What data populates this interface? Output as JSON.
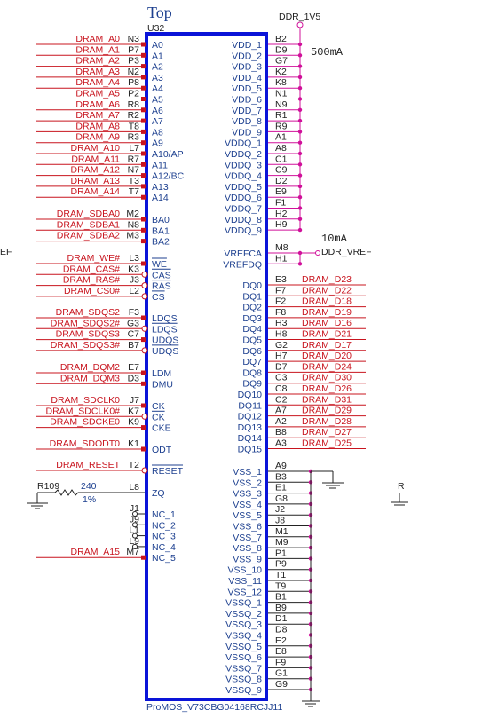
{
  "header": {
    "title": "Top",
    "refdes": "U32",
    "part": "ProMOS_V73CBG04168RCJJ11"
  },
  "power": {
    "rail": "DDR_1V5",
    "rail_current": "500mA",
    "vref": "DDR_VREF",
    "vref_current": "10mA"
  },
  "resistor": {
    "ref": "R109",
    "value": "240",
    "tolerance": "1%"
  },
  "edge_fragments": {
    "left": "EF",
    "right": "R"
  },
  "left_pins": [
    {
      "pin": "N3",
      "name": "A0",
      "net": "DRAM_A0"
    },
    {
      "pin": "P7",
      "name": "A1",
      "net": "DRAM_A1"
    },
    {
      "pin": "P3",
      "name": "A2",
      "net": "DRAM_A2"
    },
    {
      "pin": "N2",
      "name": "A3",
      "net": "DRAM_A3"
    },
    {
      "pin": "P8",
      "name": "A4",
      "net": "DRAM_A4"
    },
    {
      "pin": "P2",
      "name": "A5",
      "net": "DRAM_A5"
    },
    {
      "pin": "R8",
      "name": "A6",
      "net": "DRAM_A6"
    },
    {
      "pin": "R2",
      "name": "A7",
      "net": "DRAM_A7"
    },
    {
      "pin": "T8",
      "name": "A8",
      "net": "DRAM_A8"
    },
    {
      "pin": "R3",
      "name": "A9",
      "net": "DRAM_A9"
    },
    {
      "pin": "L7",
      "name": "A10/AP",
      "net": "DRAM_A10"
    },
    {
      "pin": "R7",
      "name": "A11",
      "net": "DRAM_A11"
    },
    {
      "pin": "N7",
      "name": "A12/BC",
      "net": "DRAM_A12"
    },
    {
      "pin": "T3",
      "name": "A13",
      "net": "DRAM_A13"
    },
    {
      "pin": "T7",
      "name": "A14",
      "net": "DRAM_A14"
    },
    {
      "pin": "M2",
      "name": "BA0",
      "net": "DRAM_SDBA0"
    },
    {
      "pin": "N8",
      "name": "BA1",
      "net": "DRAM_SDBA1"
    },
    {
      "pin": "M3",
      "name": "BA2",
      "net": "DRAM_SDBA2"
    },
    {
      "pin": "L3",
      "name": "WE",
      "net": "DRAM_WE#"
    },
    {
      "pin": "K3",
      "name": "CAS",
      "net": "DRAM_CAS#"
    },
    {
      "pin": "J3",
      "name": "RAS",
      "net": "DRAM_RAS#"
    },
    {
      "pin": "L2",
      "name": "CS",
      "net": "DRAM_CS0#"
    },
    {
      "pin": "F3",
      "name": "LDQS",
      "net": "DRAM_SDQS2"
    },
    {
      "pin": "G3",
      "name": "LDQS",
      "net": "DRAM_SDQS2#"
    },
    {
      "pin": "C7",
      "name": "UDQS",
      "net": "DRAM_SDQS3"
    },
    {
      "pin": "B7",
      "name": "UDQS",
      "net": "DRAM_SDQS3#"
    },
    {
      "pin": "E7",
      "name": "LDM",
      "net": "DRAM_DQM2"
    },
    {
      "pin": "D3",
      "name": "DMU",
      "net": "DRAM_DQM3"
    },
    {
      "pin": "J7",
      "name": "CK",
      "net": "DRAM_SDCLK0"
    },
    {
      "pin": "K7",
      "name": "CK",
      "net": "DRAM_SDCLK0#"
    },
    {
      "pin": "K9",
      "name": "CKE",
      "net": "DRAM_SDCKE0"
    },
    {
      "pin": "K1",
      "name": "ODT",
      "net": "DRAM_SDODT0"
    },
    {
      "pin": "T2",
      "name": "RESET",
      "net": "DRAM_RESET"
    },
    {
      "pin": "L8",
      "name": "ZQ"
    },
    {
      "pin": "J1",
      "name": "NC_1"
    },
    {
      "pin": "J9",
      "name": "NC_2"
    },
    {
      "pin": "L1",
      "name": "NC_3"
    },
    {
      "pin": "L9",
      "name": "NC_4"
    },
    {
      "pin": "M7",
      "name": "NC_5",
      "net": "DRAM_A15"
    }
  ],
  "right_pins": [
    {
      "pin": "B2",
      "name": "VDD_1"
    },
    {
      "pin": "D9",
      "name": "VDD_2"
    },
    {
      "pin": "G7",
      "name": "VDD_3"
    },
    {
      "pin": "K2",
      "name": "VDD_4"
    },
    {
      "pin": "K8",
      "name": "VDD_5"
    },
    {
      "pin": "N1",
      "name": "VDD_6"
    },
    {
      "pin": "N9",
      "name": "VDD_7"
    },
    {
      "pin": "R1",
      "name": "VDD_8"
    },
    {
      "pin": "R9",
      "name": "VDD_9"
    },
    {
      "pin": "A1",
      "name": "VDDQ_1"
    },
    {
      "pin": "A8",
      "name": "VDDQ_2"
    },
    {
      "pin": "C1",
      "name": "VDDQ_3"
    },
    {
      "pin": "C9",
      "name": "VDDQ_4"
    },
    {
      "pin": "D2",
      "name": "VDDQ_5"
    },
    {
      "pin": "E9",
      "name": "VDDQ_6"
    },
    {
      "pin": "F1",
      "name": "VDDQ_7"
    },
    {
      "pin": "H2",
      "name": "VDDQ_8"
    },
    {
      "pin": "H9",
      "name": "VDDQ_9"
    },
    {
      "pin": "M8",
      "name": "VREFCA"
    },
    {
      "pin": "H1",
      "name": "VREFDQ"
    },
    {
      "pin": "E3",
      "name": "DQ0",
      "net": "DRAM_D23"
    },
    {
      "pin": "F7",
      "name": "DQ1",
      "net": "DRAM_D22"
    },
    {
      "pin": "F2",
      "name": "DQ2",
      "net": "DRAM_D18"
    },
    {
      "pin": "F8",
      "name": "DQ3",
      "net": "DRAM_D19"
    },
    {
      "pin": "H3",
      "name": "DQ4",
      "net": "DRAM_D16"
    },
    {
      "pin": "H8",
      "name": "DQ5",
      "net": "DRAM_D21"
    },
    {
      "pin": "G2",
      "name": "DQ6",
      "net": "DRAM_D17"
    },
    {
      "pin": "H7",
      "name": "DQ7",
      "net": "DRAM_D20"
    },
    {
      "pin": "D7",
      "name": "DQ8",
      "net": "DRAM_D24"
    },
    {
      "pin": "C3",
      "name": "DQ9",
      "net": "DRAM_D30"
    },
    {
      "pin": "C8",
      "name": "DQ10",
      "net": "DRAM_D26"
    },
    {
      "pin": "C2",
      "name": "DQ11",
      "net": "DRAM_D31"
    },
    {
      "pin": "A7",
      "name": "DQ12",
      "net": "DRAM_D29"
    },
    {
      "pin": "A2",
      "name": "DQ13",
      "net": "DRAM_D28"
    },
    {
      "pin": "B8",
      "name": "DQ14",
      "net": "DRAM_D27"
    },
    {
      "pin": "A3",
      "name": "DQ15",
      "net": "DRAM_D25"
    },
    {
      "pin": "A9",
      "name": "VSS_1"
    },
    {
      "pin": "B3",
      "name": "VSS_2"
    },
    {
      "pin": "E1",
      "name": "VSS_3"
    },
    {
      "pin": "G8",
      "name": "VSS_4"
    },
    {
      "pin": "J2",
      "name": "VSS_5"
    },
    {
      "pin": "J8",
      "name": "VSS_6"
    },
    {
      "pin": "M1",
      "name": "VSS_7"
    },
    {
      "pin": "M9",
      "name": "VSS_8"
    },
    {
      "pin": "P1",
      "name": "VSS_9"
    },
    {
      "pin": "P9",
      "name": "VSS_10"
    },
    {
      "pin": "T1",
      "name": "VSS_11"
    },
    {
      "pin": "T9",
      "name": "VSS_12"
    },
    {
      "pin": "B1",
      "name": "VSSQ_1"
    },
    {
      "pin": "B9",
      "name": "VSSQ_2"
    },
    {
      "pin": "D1",
      "name": "VSSQ_3"
    },
    {
      "pin": "D8",
      "name": "VSSQ_4"
    },
    {
      "pin": "E2",
      "name": "VSSQ_5"
    },
    {
      "pin": "E8",
      "name": "VSSQ_6"
    },
    {
      "pin": "F9",
      "name": "VSSQ_7"
    },
    {
      "pin": "G1",
      "name": "VSSQ_8"
    },
    {
      "pin": "G9",
      "name": "VSSQ_9"
    }
  ]
}
